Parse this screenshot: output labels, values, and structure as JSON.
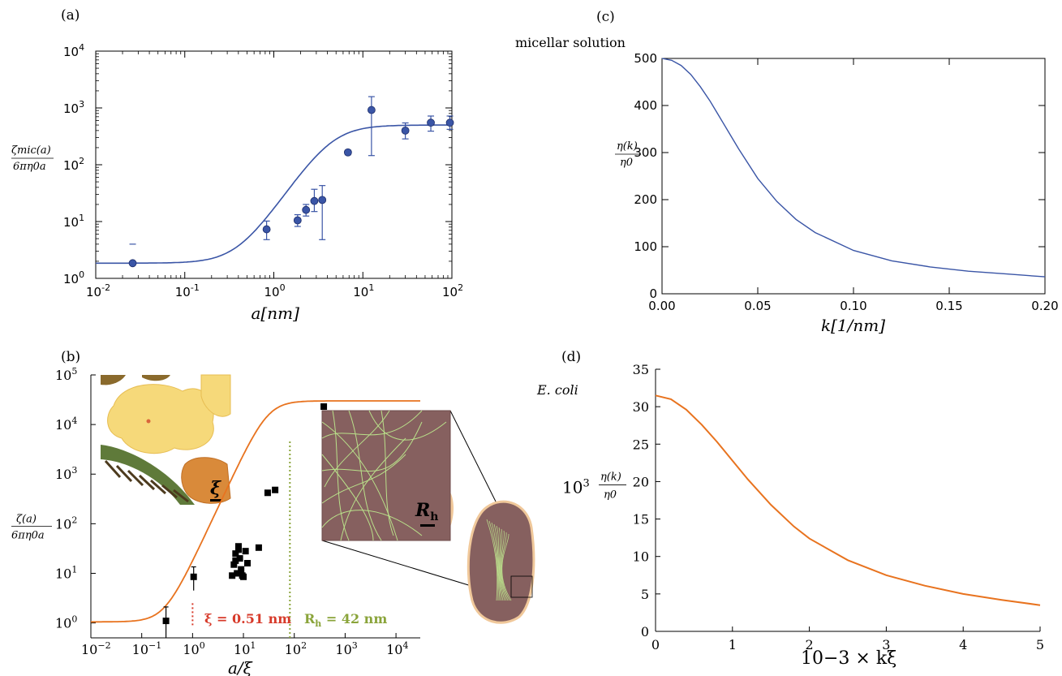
{
  "chart_data": [
    {
      "panel": "(a)",
      "type": "scatter",
      "xscale": "log",
      "yscale": "log",
      "xlim": [
        0.01,
        100
      ],
      "ylim": [
        1,
        10000
      ],
      "xlabel": "a[nm]",
      "ylabel_num": "ζmic(a)",
      "ylabel_den": "6πη0a",
      "xticks": [
        {
          "v": 0.01,
          "m": "10",
          "e": "-2"
        },
        {
          "v": 0.1,
          "m": "10",
          "e": "-1"
        },
        {
          "v": 1,
          "m": "10",
          "e": "0"
        },
        {
          "v": 10,
          "m": "10",
          "e": "1"
        },
        {
          "v": 100,
          "m": "10",
          "e": "2"
        }
      ],
      "yticks": [
        {
          "v": 1,
          "m": "10",
          "e": "0"
        },
        {
          "v": 10,
          "m": "10",
          "e": "1"
        },
        {
          "v": 100,
          "m": "10",
          "e": "2"
        },
        {
          "v": 1000,
          "m": "10",
          "e": "3"
        },
        {
          "v": 10000,
          "m": "10",
          "e": "4"
        }
      ],
      "points": [
        {
          "x": 0.026,
          "y": 1.85
        },
        {
          "x": 0.83,
          "y": 7.3,
          "lo": 4.8,
          "hi": 10.2
        },
        {
          "x": 1.85,
          "y": 10.5,
          "lo": 8.2,
          "hi": 13.2
        },
        {
          "x": 2.3,
          "y": 16,
          "lo": 12.5,
          "hi": 20
        },
        {
          "x": 2.85,
          "y": 23,
          "lo": 15,
          "hi": 37
        },
        {
          "x": 3.5,
          "y": 24,
          "lo": 4.8,
          "hi": 43
        },
        {
          "x": 6.8,
          "y": 165,
          "lo": 150,
          "hi": 180
        },
        {
          "x": 12.5,
          "y": 920,
          "lo": 145,
          "hi": 1580
        },
        {
          "x": 30,
          "y": 400,
          "lo": 285,
          "hi": 545
        },
        {
          "x": 58,
          "y": 550,
          "lo": 390,
          "hi": 720
        },
        {
          "x": 95,
          "y": 550,
          "lo": 420,
          "hi": 720
        }
      ],
      "stray_tick": {
        "x": 0.026,
        "y": 4
      },
      "fit": {
        "low": 1.85,
        "high": 500,
        "x0": 4.5,
        "n": 2.3
      },
      "color": "#3a55a6"
    },
    {
      "panel": "(b)",
      "type": "scatter",
      "xscale": "log",
      "yscale": "log",
      "xlim": [
        0.01,
        30000
      ],
      "ylim": [
        0.5,
        100000
      ],
      "xlabel": "a/ξ",
      "ylabel_num": "ζ(a)",
      "ylabel_den": "6πη0a",
      "xticks": [
        {
          "v": 0.01,
          "m": "10",
          "e": "−2"
        },
        {
          "v": 0.1,
          "m": "10",
          "e": "−1"
        },
        {
          "v": 1,
          "m": "10",
          "e": "0"
        },
        {
          "v": 10,
          "m": "10",
          "e": "1"
        },
        {
          "v": 100,
          "m": "10",
          "e": "2"
        },
        {
          "v": 1000,
          "m": "10",
          "e": "3"
        },
        {
          "v": 10000,
          "m": "10",
          "e": "4"
        }
      ],
      "yticks": [
        {
          "v": 1,
          "m": "10",
          "e": "0"
        },
        {
          "v": 10,
          "m": "10",
          "e": "1"
        },
        {
          "v": 100,
          "m": "10",
          "e": "2"
        },
        {
          "v": 1000,
          "m": "10",
          "e": "3"
        },
        {
          "v": 10000,
          "m": "10",
          "e": "4"
        },
        {
          "v": 100000,
          "m": "10",
          "e": "5"
        }
      ],
      "points": [
        {
          "x": 0.3,
          "y": 1.1,
          "lo": 0.5,
          "hi": 2.1
        },
        {
          "x": 1.05,
          "y": 8.5,
          "lo": 4.5,
          "hi": 13.5
        },
        {
          "x": 6.5,
          "y": 15
        },
        {
          "x": 7,
          "y": 25
        },
        {
          "x": 7.5,
          "y": 10
        },
        {
          "x": 8,
          "y": 35
        },
        {
          "x": 8.5,
          "y": 20
        },
        {
          "x": 9,
          "y": 12
        },
        {
          "x": 10,
          "y": 8.5
        },
        {
          "x": 11,
          "y": 28
        },
        {
          "x": 6,
          "y": 9
        },
        {
          "x": 8,
          "y": 30
        },
        {
          "x": 7,
          "y": 18
        },
        {
          "x": 9.5,
          "y": 9
        },
        {
          "x": 12,
          "y": 16
        },
        {
          "x": 20,
          "y": 33
        },
        {
          "x": 30,
          "y": 420
        },
        {
          "x": 42,
          "y": 480
        },
        {
          "x": 380,
          "y": 23000
        }
      ],
      "fit": {
        "low": 1.05,
        "high": 30000,
        "x0": 30,
        "n": 2.2
      },
      "vlines": [
        {
          "x": 1.0,
          "color": "#d73a2a",
          "style": "dotted",
          "from": 0.9,
          "to": 2.6
        },
        {
          "x": 82,
          "color": "#8aa43a",
          "style": "dotted",
          "from": 0.5,
          "to": 5000
        }
      ],
      "annotations": [
        {
          "text": "ξ = 0.51 nm",
          "color": "#d73a2a"
        },
        {
          "text": "R",
          "sub": "h",
          "rest": " = 42 nm",
          "color": "#8aa43a"
        }
      ],
      "inset_labels": {
        "xi": "ξ",
        "rh": "R",
        "rh_sub": "h"
      },
      "colors": {
        "fit": "#e8731f",
        "points": "#000000"
      }
    },
    {
      "panel": "(c)",
      "type": "line",
      "title": "micellar solution",
      "xlim": [
        0,
        0.2
      ],
      "ylim": [
        0,
        500
      ],
      "xlabel": "k[1/nm]",
      "ylabel_num": "η(k)",
      "ylabel_den": "η0",
      "xticks": [
        "0.00",
        "0.05",
        "0.10",
        "0.15",
        "0.20"
      ],
      "yticks": [
        "0",
        "100",
        "200",
        "300",
        "400",
        "500"
      ],
      "curve": {
        "A": 500,
        "xi": 0.04,
        "n": 2.0,
        "x": [
          0.0,
          0.005,
          0.01,
          0.015,
          0.02,
          0.025,
          0.03,
          0.035,
          0.04,
          0.05,
          0.06,
          0.07,
          0.08,
          0.1,
          0.12,
          0.14,
          0.16,
          0.18,
          0.2
        ],
        "y": [
          500,
          496,
          485,
          466,
          440,
          410,
          376,
          342,
          308,
          245,
          196,
          158,
          130,
          92,
          70,
          57,
          48,
          42,
          36
        ]
      },
      "color": "#3a55a6"
    },
    {
      "panel": "(d)",
      "type": "line",
      "title": "E. coli",
      "xlim": [
        0,
        5
      ],
      "ylim": [
        0,
        35
      ],
      "xlabel": "10−3 × kξ",
      "ylabel_prefix": "10",
      "ylabel_exp": "3",
      "ylabel_num": "η(k)",
      "ylabel_den": "η0",
      "xticks": [
        "0",
        "1",
        "2",
        "3",
        "4",
        "5"
      ],
      "yticks": [
        "0",
        "5",
        "10",
        "15",
        "20",
        "25",
        "30",
        "35"
      ],
      "curve": {
        "x": [
          0,
          0.2,
          0.4,
          0.6,
          0.8,
          1.0,
          1.2,
          1.5,
          1.8,
          2.0,
          2.5,
          3.0,
          3.5,
          4.0,
          4.5,
          5.0
        ],
        "y": [
          31.5,
          31.0,
          29.6,
          27.6,
          25.3,
          22.8,
          20.3,
          16.9,
          14.0,
          12.4,
          9.5,
          7.5,
          6.1,
          5.0,
          4.2,
          3.5
        ]
      },
      "color": "#e8731f"
    }
  ]
}
